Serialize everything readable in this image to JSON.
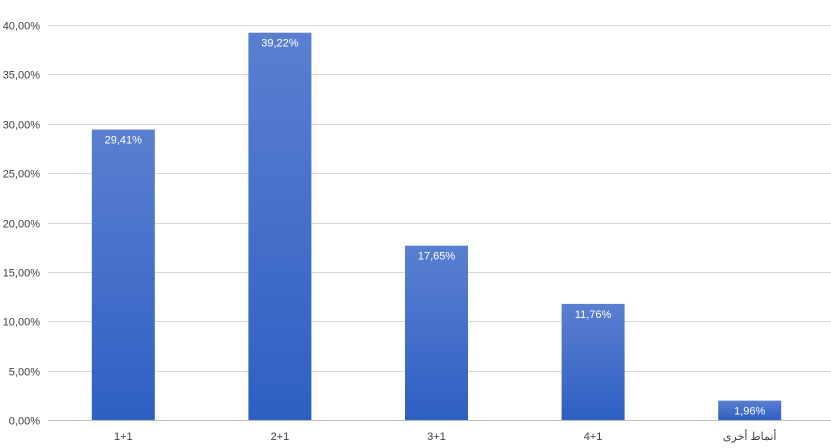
{
  "chart_data": {
    "type": "bar",
    "categories": [
      "1+1",
      "2+1",
      "3+1",
      "4+1",
      "أنماط أخرى"
    ],
    "values": [
      29.41,
      39.22,
      17.65,
      11.76,
      1.96
    ],
    "data_labels": [
      "29,41%",
      "39,22%",
      "17,65%",
      "11,76%",
      "1,96%"
    ],
    "ylim": [
      0,
      40
    ],
    "yticks": [
      0,
      5,
      10,
      15,
      20,
      25,
      30,
      35,
      40
    ],
    "ytick_labels": [
      "0,00%",
      "5,00%",
      "10,00%",
      "15,00%",
      "20,00%",
      "25,00%",
      "30,00%",
      "35,00%",
      "40,00%"
    ],
    "title": "",
    "xlabel": "",
    "ylabel": "",
    "grid": true,
    "bar_color_top": "#5a7fd0",
    "bar_color_bottom": "#2f5fc4"
  }
}
